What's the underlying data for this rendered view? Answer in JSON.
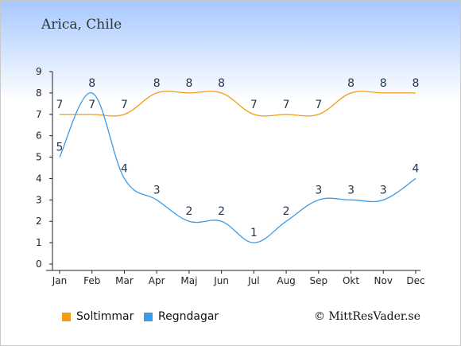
{
  "header": {
    "title": "Arica, Chile"
  },
  "credit": "© MittResVader.se",
  "colors": {
    "soltimmar": "#f39c12",
    "regndagar": "#3b9be8",
    "grid": "#222222"
  },
  "chart_data": {
    "type": "line",
    "title": "Arica, Chile",
    "categories": [
      "Jan",
      "Feb",
      "Mar",
      "Apr",
      "Maj",
      "Jun",
      "Jul",
      "Aug",
      "Sep",
      "Okt",
      "Nov",
      "Dec"
    ],
    "ylim": [
      0,
      9
    ],
    "yticks": [
      0,
      1,
      2,
      3,
      4,
      5,
      6,
      7,
      8,
      9
    ],
    "grid": false,
    "legend_position": "bottom-left",
    "series": [
      {
        "name": "Soltimmar",
        "color": "#f39c12",
        "values": [
          7,
          7,
          7,
          8,
          8,
          8,
          7,
          7,
          7,
          8,
          8,
          8
        ]
      },
      {
        "name": "Regndagar",
        "color": "#3b9be8",
        "values": [
          5,
          8,
          4,
          3,
          2,
          2,
          1,
          2,
          3,
          3,
          3,
          4
        ]
      }
    ]
  }
}
